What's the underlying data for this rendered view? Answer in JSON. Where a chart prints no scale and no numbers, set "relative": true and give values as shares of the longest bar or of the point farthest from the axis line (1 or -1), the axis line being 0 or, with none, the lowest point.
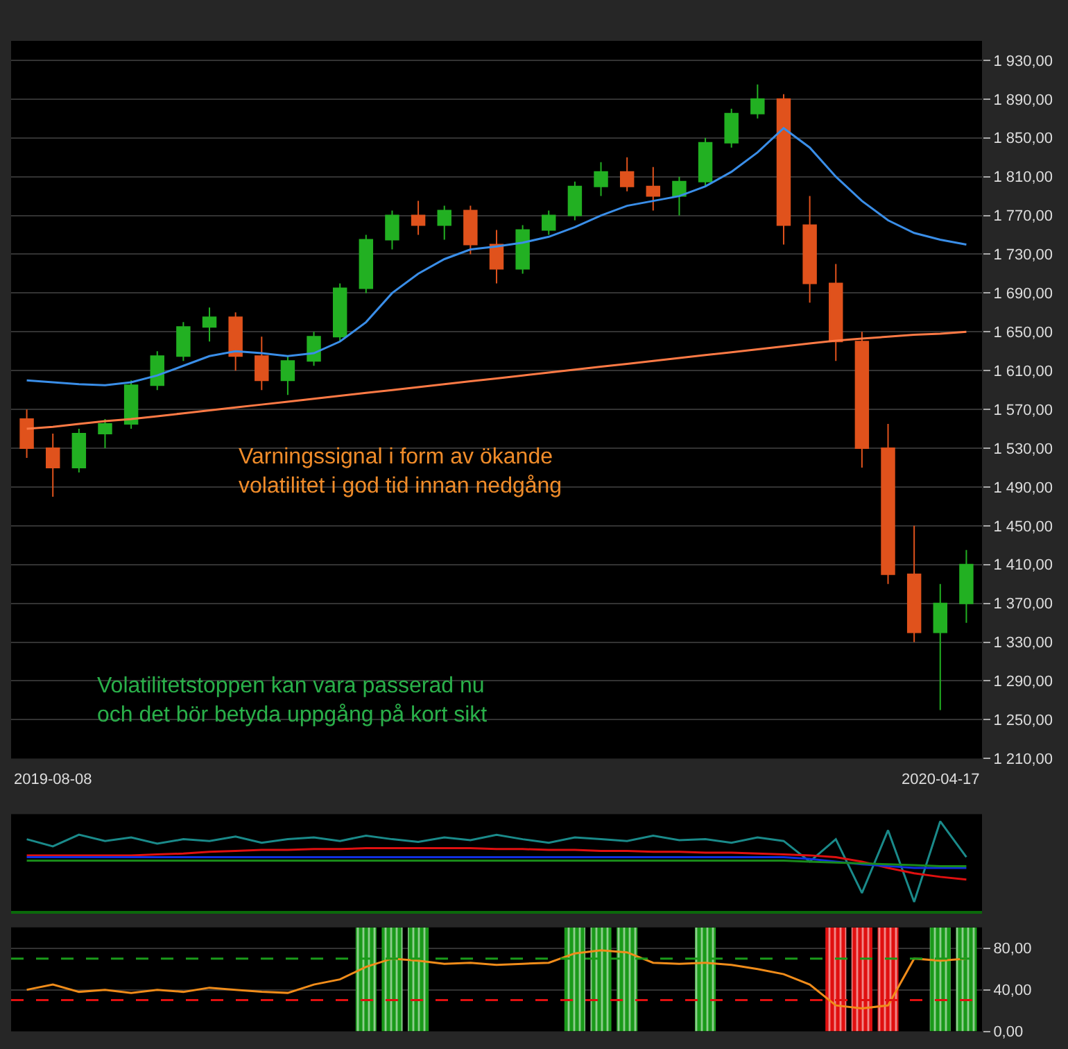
{
  "chart_data": [
    {
      "type": "candlestick",
      "categories": [
        null,
        null,
        null,
        null,
        null,
        null,
        null,
        null,
        null,
        null,
        null,
        null,
        null,
        null,
        null,
        null,
        null,
        null,
        null,
        null,
        null,
        null,
        null,
        null,
        null,
        null,
        null,
        null,
        null,
        null,
        null,
        null,
        null,
        null,
        null,
        null,
        null
      ],
      "ohlc": [
        [
          1560,
          1570,
          1520,
          1530
        ],
        [
          1530,
          1545,
          1480,
          1510
        ],
        [
          1510,
          1550,
          1505,
          1545
        ],
        [
          1545,
          1560,
          1530,
          1555
        ],
        [
          1555,
          1600,
          1550,
          1595
        ],
        [
          1595,
          1630,
          1590,
          1625
        ],
        [
          1625,
          1660,
          1620,
          1655
        ],
        [
          1655,
          1675,
          1640,
          1665
        ],
        [
          1665,
          1670,
          1610,
          1625
        ],
        [
          1625,
          1645,
          1590,
          1600
        ],
        [
          1600,
          1625,
          1585,
          1620
        ],
        [
          1620,
          1650,
          1615,
          1645
        ],
        [
          1645,
          1700,
          1640,
          1695
        ],
        [
          1695,
          1750,
          1690,
          1745
        ],
        [
          1745,
          1775,
          1735,
          1770
        ],
        [
          1770,
          1785,
          1750,
          1760
        ],
        [
          1760,
          1780,
          1745,
          1775
        ],
        [
          1775,
          1780,
          1730,
          1740
        ],
        [
          1740,
          1755,
          1700,
          1715
        ],
        [
          1715,
          1760,
          1710,
          1755
        ],
        [
          1755,
          1775,
          1750,
          1770
        ],
        [
          1770,
          1805,
          1765,
          1800
        ],
        [
          1800,
          1825,
          1790,
          1815
        ],
        [
          1815,
          1830,
          1795,
          1800
        ],
        [
          1800,
          1820,
          1775,
          1790
        ],
        [
          1790,
          1810,
          1770,
          1805
        ],
        [
          1805,
          1850,
          1800,
          1845
        ],
        [
          1845,
          1880,
          1840,
          1875
        ],
        [
          1875,
          1905,
          1870,
          1890
        ],
        [
          1890,
          1895,
          1740,
          1760
        ],
        [
          1760,
          1790,
          1680,
          1700
        ],
        [
          1700,
          1720,
          1620,
          1640
        ],
        [
          1640,
          1650,
          1510,
          1530
        ],
        [
          1530,
          1555,
          1390,
          1400
        ],
        [
          1400,
          1450,
          1330,
          1340
        ],
        [
          1340,
          1390,
          1260,
          1370
        ],
        [
          1370,
          1425,
          1350,
          1410
        ]
      ],
      "colors": [
        "#e0521c",
        "#e0521c",
        "#22b022",
        "#22b022",
        "#22b022",
        "#22b022",
        "#22b022",
        "#22b022",
        "#e0521c",
        "#e0521c",
        "#22b022",
        "#22b022",
        "#22b022",
        "#22b022",
        "#22b022",
        "#e0521c",
        "#22b022",
        "#e0521c",
        "#e0521c",
        "#22b022",
        "#22b022",
        "#22b022",
        "#22b022",
        "#e0521c",
        "#e0521c",
        "#22b022",
        "#22b022",
        "#22b022",
        "#22b022",
        "#e0521c",
        "#e0521c",
        "#e0521c",
        "#e0521c",
        "#e0521c",
        "#e0521c",
        "#22b022",
        "#22b022"
      ],
      "series": [
        {
          "type": "line",
          "color": "#3a8ee8",
          "values": [
            1600,
            1598,
            1596,
            1595,
            1598,
            1605,
            1615,
            1625,
            1630,
            1628,
            1625,
            1628,
            1640,
            1660,
            1690,
            1710,
            1725,
            1735,
            1738,
            1742,
            1748,
            1758,
            1770,
            1780,
            1785,
            1790,
            1800,
            1815,
            1835,
            1860,
            1840,
            1810,
            1785,
            1765,
            1752,
            1745,
            1740
          ]
        },
        {
          "type": "line",
          "color": "#ff7a45",
          "values": [
            1550,
            1552,
            1555,
            1558,
            1560,
            1563,
            1566,
            1569,
            1572,
            1575,
            1578,
            1581,
            1584,
            1587,
            1590,
            1593,
            1596,
            1599,
            1602,
            1605,
            1608,
            1611,
            1614,
            1617,
            1620,
            1623,
            1626,
            1629,
            1632,
            1635,
            1638,
            1641,
            1643,
            1645,
            1647,
            1648,
            1650
          ]
        }
      ],
      "ylim": [
        1210,
        1950
      ],
      "yticks": [
        {
          "value": 1210,
          "label": "1 210,00"
        },
        {
          "value": 1250,
          "label": "1 250,00"
        },
        {
          "value": 1290,
          "label": "1 290,00"
        },
        {
          "value": 1330,
          "label": "1 330,00"
        },
        {
          "value": 1370,
          "label": "1 370,00"
        },
        {
          "value": 1410,
          "label": "1 410,00"
        },
        {
          "value": 1450,
          "label": "1 450,00"
        },
        {
          "value": 1490,
          "label": "1 490,00"
        },
        {
          "value": 1530,
          "label": "1 530,00"
        },
        {
          "value": 1570,
          "label": "1 570,00"
        },
        {
          "value": 1610,
          "label": "1 610,00"
        },
        {
          "value": 1650,
          "label": "1 650,00"
        },
        {
          "value": 1690,
          "label": "1 690,00"
        },
        {
          "value": 1730,
          "label": "1 730,00"
        },
        {
          "value": 1770,
          "label": "1 770,00"
        },
        {
          "value": 1810,
          "label": "1 810,00"
        },
        {
          "value": 1850,
          "label": "1 850,00"
        },
        {
          "value": 1890,
          "label": "1 890,00"
        },
        {
          "value": 1930,
          "label": "1 930,00"
        }
      ],
      "tick_labels": "y",
      "grid": "y",
      "annotations": [
        "Varningssignal i form av ökande\nvolatilitet i god tid innan nedgång",
        "Volatilitetstoppen kan vara passerad nu\noch det bör betyda uppgång på kort sikt",
        "2019-08-08",
        "2020-04-17"
      ]
    },
    {
      "type": "line",
      "relative": true,
      "tick_labels": false,
      "categories": [
        null,
        null,
        null,
        null,
        null,
        null,
        null,
        null,
        null,
        null,
        null,
        null,
        null,
        null,
        null,
        null,
        null,
        null,
        null,
        null,
        null,
        null,
        null,
        null,
        null,
        null,
        null,
        null,
        null,
        null,
        null,
        null,
        null,
        null,
        null,
        null,
        null
      ],
      "series": [
        {
          "color": "#1a8a8a",
          "values": [
            0.8,
            0.72,
            0.85,
            0.78,
            0.82,
            0.75,
            0.8,
            0.78,
            0.83,
            0.76,
            0.8,
            0.82,
            0.78,
            0.84,
            0.8,
            0.77,
            0.82,
            0.79,
            0.85,
            0.8,
            0.76,
            0.82,
            0.8,
            0.78,
            0.84,
            0.79,
            0.8,
            0.76,
            0.82,
            0.78,
            0.55,
            0.8,
            0.2,
            0.9,
            0.1,
            1,
            0.6
          ]
        },
        {
          "color": "#e01010",
          "values": [
            0.62,
            0.62,
            0.62,
            0.62,
            0.62,
            0.63,
            0.64,
            0.66,
            0.67,
            0.68,
            0.68,
            0.69,
            0.69,
            0.7,
            0.7,
            0.7,
            0.7,
            0.7,
            0.69,
            0.69,
            0.68,
            0.68,
            0.67,
            0.67,
            0.66,
            0.66,
            0.65,
            0.65,
            0.64,
            0.63,
            0.62,
            0.6,
            0.55,
            0.48,
            0.42,
            0.38,
            0.35
          ]
        },
        {
          "color": "#1030e0",
          "values": [
            0.6,
            0.6,
            0.6,
            0.6,
            0.6,
            0.6,
            0.6,
            0.6,
            0.6,
            0.6,
            0.6,
            0.6,
            0.6,
            0.6,
            0.6,
            0.6,
            0.6,
            0.6,
            0.6,
            0.6,
            0.6,
            0.6,
            0.6,
            0.6,
            0.6,
            0.6,
            0.6,
            0.6,
            0.6,
            0.6,
            0.58,
            0.55,
            0.52,
            0.5,
            0.48,
            0.48,
            0.48
          ]
        },
        {
          "color": "#1a8a1a",
          "values": [
            0.56,
            0.56,
            0.56,
            0.56,
            0.56,
            0.56,
            0.56,
            0.56,
            0.56,
            0.56,
            0.56,
            0.56,
            0.56,
            0.56,
            0.56,
            0.56,
            0.56,
            0.56,
            0.56,
            0.56,
            0.56,
            0.56,
            0.56,
            0.56,
            0.56,
            0.56,
            0.56,
            0.56,
            0.56,
            0.56,
            0.55,
            0.54,
            0.53,
            0.52,
            0.51,
            0.5,
            0.5
          ]
        }
      ]
    },
    {
      "type": "line",
      "tick_labels": "y",
      "categories": [
        null,
        null,
        null,
        null,
        null,
        null,
        null,
        null,
        null,
        null,
        null,
        null,
        null,
        null,
        null,
        null,
        null,
        null,
        null,
        null,
        null,
        null,
        null,
        null,
        null,
        null,
        null,
        null,
        null,
        null,
        null,
        null,
        null,
        null,
        null,
        null,
        null
      ],
      "series": [
        {
          "type": "bar",
          "values": [
            null,
            null,
            null,
            null,
            null,
            null,
            null,
            null,
            null,
            null,
            null,
            null,
            null,
            100,
            100,
            100,
            null,
            null,
            null,
            null,
            null,
            100,
            100,
            100,
            null,
            null,
            100,
            null,
            null,
            null,
            null,
            100,
            100,
            100,
            null,
            100,
            100
          ],
          "colors": [
            "#1a9a1a",
            "#1a9a1a",
            "#1a9a1a",
            "#1a9a1a",
            "#1a9a1a",
            "#1a9a1a",
            "#1a9a1a",
            "#1a9a1a",
            "#1a9a1a",
            "#1a9a1a",
            "#1a9a1a",
            "#1a9a1a",
            "#1a9a1a",
            "#1a9a1a",
            "#1a9a1a",
            "#1a9a1a",
            "#1a9a1a",
            "#1a9a1a",
            "#1a9a1a",
            "#1a9a1a",
            "#1a9a1a",
            "#1a9a1a",
            "#1a9a1a",
            "#1a9a1a",
            "#1a9a1a",
            "#1a9a1a",
            "#1a9a1a",
            "#1a9a1a",
            "#1a9a1a",
            "#1a9a1a",
            "#1a9a1a",
            "#e01010",
            "#e01010",
            "#e01010",
            "#1a9a1a",
            "#1a9a1a",
            "#1a9a1a"
          ]
        },
        {
          "type": "line",
          "color": "#f08c1a",
          "values": [
            40,
            45,
            38,
            40,
            37,
            40,
            38,
            42,
            40,
            38,
            37,
            45,
            50,
            62,
            70,
            68,
            65,
            66,
            64,
            65,
            66,
            75,
            78,
            76,
            66,
            65,
            66,
            64,
            60,
            55,
            45,
            25,
            22,
            25,
            70,
            68,
            70
          ]
        }
      ],
      "ylim": [
        0,
        100
      ],
      "yticks": [
        {
          "value": 0,
          "label": "0,00"
        },
        {
          "value": 40,
          "label": "40,00"
        },
        {
          "value": 80,
          "label": "80,00"
        }
      ],
      "grid": "y",
      "ref_lines": [
        {
          "axis": "y",
          "value": 70,
          "color": "#1a9a1a",
          "line_style": "dashed"
        },
        {
          "axis": "y",
          "value": 30,
          "color": "#e01010",
          "line_style": "dashed"
        }
      ]
    }
  ]
}
